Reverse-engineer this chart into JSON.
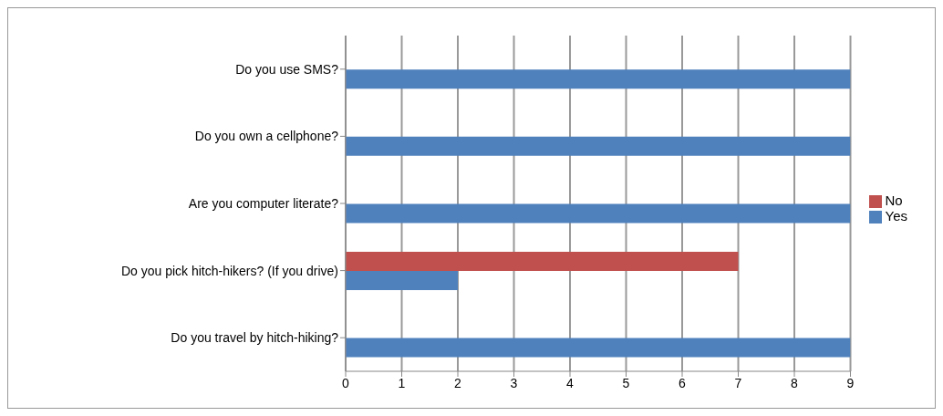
{
  "chart_data": {
    "type": "bar",
    "orientation": "horizontal",
    "categories": [
      "Do you use SMS?",
      "Do you own a cellphone?",
      "Are you computer literate?",
      "Do you pick hitch-hikers? (If you drive)",
      "Do you travel by hitch-hiking?"
    ],
    "series": [
      {
        "name": "No",
        "color": "#c0504d",
        "values": [
          0,
          0,
          0,
          7,
          0
        ]
      },
      {
        "name": "Yes",
        "color": "#4f81bd",
        "values": [
          9,
          9,
          9,
          2,
          9
        ]
      }
    ],
    "xlim": [
      0,
      9
    ],
    "xticks": [
      0,
      1,
      2,
      3,
      4,
      5,
      6,
      7,
      8,
      9
    ],
    "grid": "x",
    "legend": "right"
  }
}
